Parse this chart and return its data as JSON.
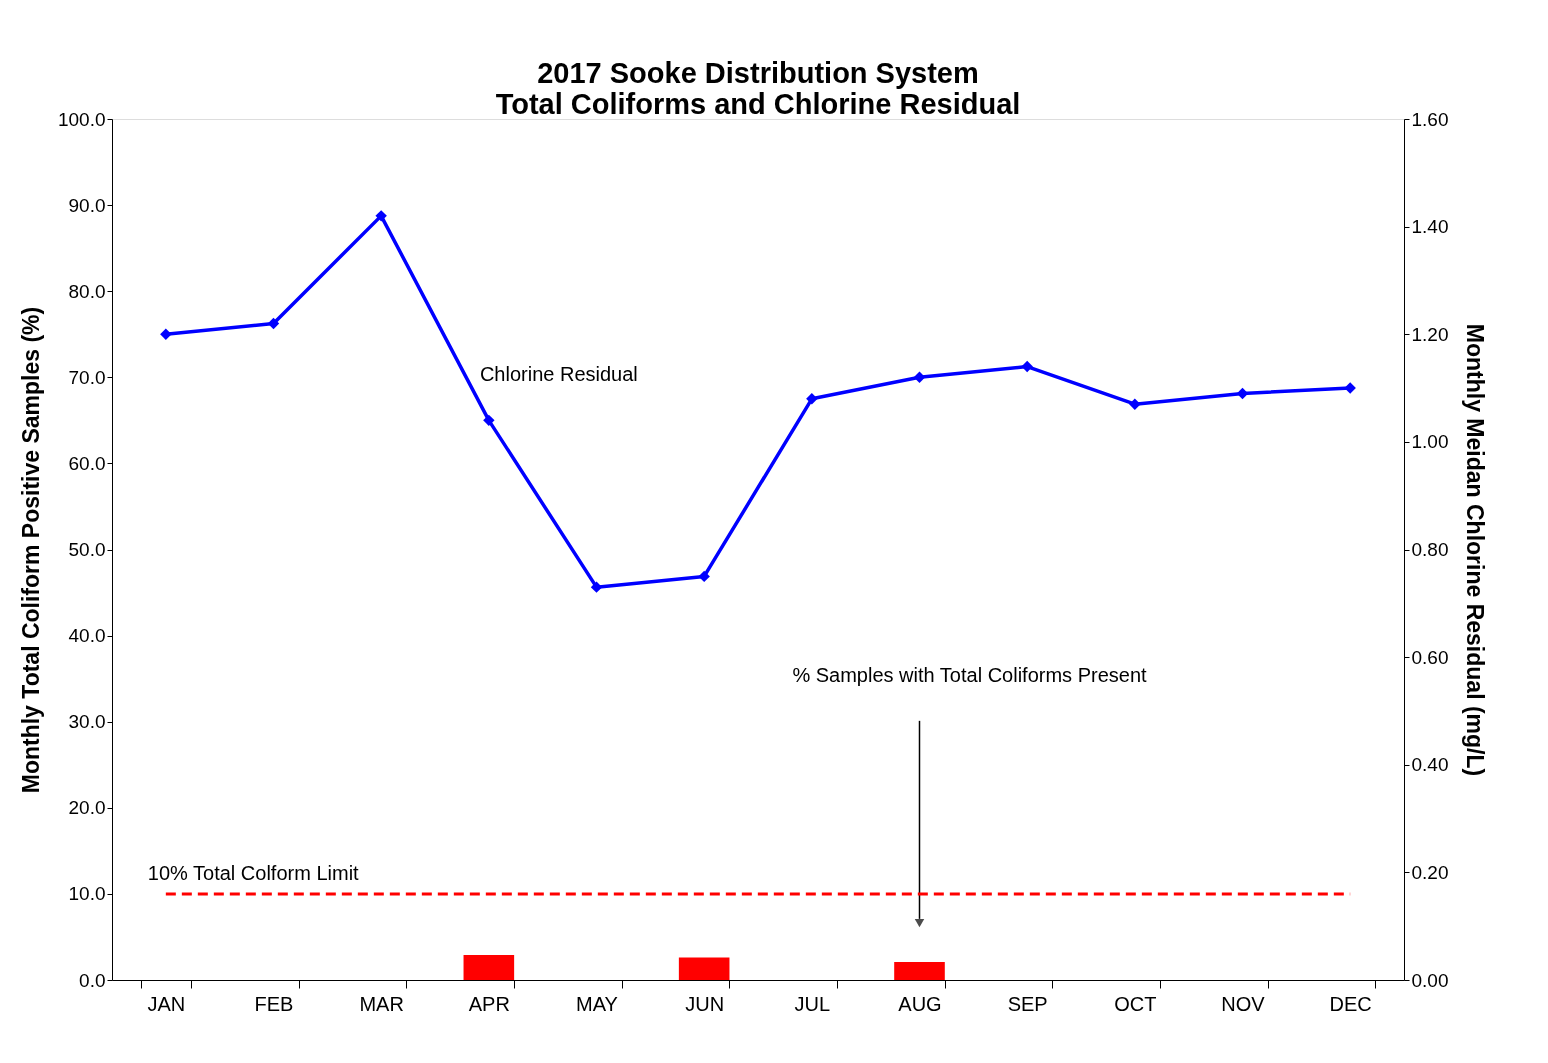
{
  "chart_data": {
    "type": "bar",
    "title": [
      "2017 Sooke Distribution System",
      "Total Coliforms and Chlorine Residual"
    ],
    "categories": [
      "JAN",
      "FEB",
      "MAR",
      "APR",
      "MAY",
      "JUN",
      "JUL",
      "AUG",
      "SEP",
      "OCT",
      "NOV",
      "DEC"
    ],
    "ylabel": "Monthly Total Coliform Positive Samples (%)",
    "y2label": "Monthly Meidan Chlorine Residual (mg/L)",
    "series": [
      {
        "color": "#ff0000",
        "values": [
          0,
          0,
          0,
          2.9,
          0,
          2.6,
          0,
          2.1,
          0,
          0,
          0,
          0
        ]
      },
      {
        "name": "Chlorine Residual",
        "type": "line",
        "axis": "y2",
        "color": "#0000ff",
        "marker": "diamond",
        "values": [
          1.2,
          1.22,
          1.42,
          1.04,
          0.73,
          0.75,
          1.08,
          1.12,
          1.14,
          1.07,
          1.09,
          1.1
        ]
      }
    ],
    "ylim": [
      0,
      100
    ],
    "yticks": [
      {
        "value": 0,
        "label": "0.0"
      },
      {
        "value": 10,
        "label": "10.0"
      },
      {
        "value": 20,
        "label": "20.0"
      },
      {
        "value": 30,
        "label": "30.0"
      },
      {
        "value": 40,
        "label": "40.0"
      },
      {
        "value": 50,
        "label": "50.0"
      },
      {
        "value": 60,
        "label": "60.0"
      },
      {
        "value": 70,
        "label": "70.0"
      },
      {
        "value": 80,
        "label": "80.0"
      },
      {
        "value": 90,
        "label": "90.0"
      },
      {
        "value": 100,
        "label": "100.0"
      }
    ],
    "y2lim": [
      0,
      1.6
    ],
    "y2ticks": [
      {
        "value": 0,
        "label": "0.00"
      },
      {
        "value": 0.2,
        "label": "0.20"
      },
      {
        "value": 0.4,
        "label": "0.40"
      },
      {
        "value": 0.6,
        "label": "0.60"
      },
      {
        "value": 0.8,
        "label": "0.80"
      },
      {
        "value": 1.0,
        "label": "1.00"
      },
      {
        "value": 1.2,
        "label": "1.20"
      },
      {
        "value": 1.4,
        "label": "1.40"
      },
      {
        "value": 1.6,
        "label": "1.60"
      }
    ],
    "ref_lines": [
      {
        "axis": "y",
        "value": 10,
        "label": "10% Total Colform Limit",
        "color": "#ff0000",
        "line_style": "dashed"
      }
    ],
    "annotations": [
      "% Samples with Total Coliforms Present"
    ],
    "grid": false
  }
}
